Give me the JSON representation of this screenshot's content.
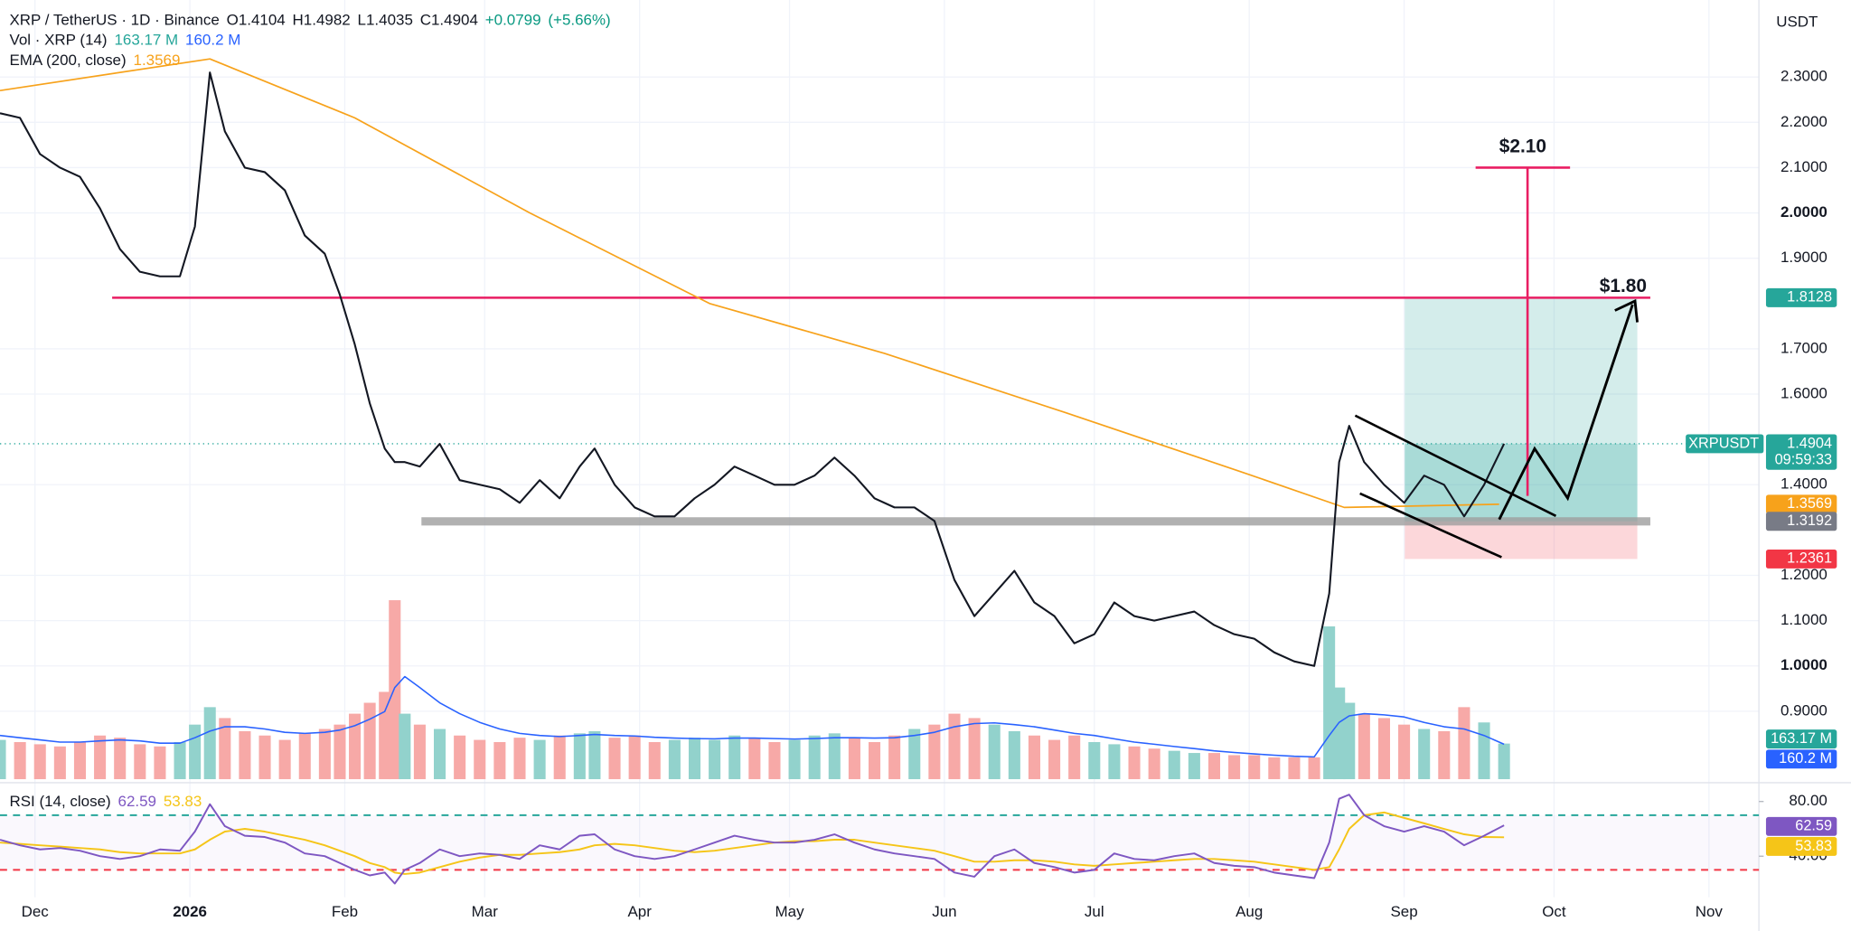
{
  "chart_data": {
    "type": "line",
    "title": "XRP / TetherUS · 1D · Binance",
    "ohlc": [
      {
        "value": 1.4104,
        "label": "O1.4104"
      },
      {
        "value": 1.4982,
        "label": "H1.4982"
      },
      {
        "value": 1.4035,
        "label": "L1.4035"
      },
      {
        "value": 1.4904,
        "label": "C1.4904"
      },
      {
        "value": 0.0799,
        "label": "+0.0799"
      },
      {
        "value": 5.66,
        "label": "(+5.66%)"
      }
    ],
    "currency": "USDT",
    "symbol_tag": "XRPUSDT",
    "countdown": "09:59:33",
    "xlim": [
      -7,
      345
    ],
    "xticks": [
      {
        "value": 0,
        "label": "Dec"
      },
      {
        "value": 31,
        "label": "2026"
      },
      {
        "value": 62,
        "label": "Feb"
      },
      {
        "value": 90,
        "label": "Mar"
      },
      {
        "value": 121,
        "label": "Apr"
      },
      {
        "value": 151,
        "label": "May"
      },
      {
        "value": 182,
        "label": "Jun"
      },
      {
        "value": 212,
        "label": "Jul"
      },
      {
        "value": 243,
        "label": "Aug"
      },
      {
        "value": 274,
        "label": "Sep"
      },
      {
        "value": 304,
        "label": "Oct"
      },
      {
        "value": 335,
        "label": "Nov"
      }
    ],
    "ylim": [
      0.75,
      2.47
    ],
    "yticks": [
      {
        "value": 2.3,
        "label": "2.3000"
      },
      {
        "value": 2.2,
        "label": "2.2000"
      },
      {
        "value": 2.1,
        "label": "2.1000"
      },
      {
        "value": 2.0,
        "label": "2.0000"
      },
      {
        "value": 1.9,
        "label": "1.9000"
      },
      {
        "value": 1.7,
        "label": "1.7000"
      },
      {
        "value": 1.6,
        "label": "1.6000"
      },
      {
        "value": 1.4,
        "label": "1.4000"
      },
      {
        "value": 1.2,
        "label": "1.2000"
      },
      {
        "value": 1.1,
        "label": "1.1000"
      },
      {
        "value": 1.0,
        "label": "1.0000"
      },
      {
        "value": 0.9,
        "label": "0.9000"
      }
    ],
    "grid": true,
    "x": [
      -7,
      -3,
      1,
      5,
      9,
      13,
      17,
      21,
      25,
      29,
      32,
      35,
      38,
      42,
      46,
      50,
      54,
      58,
      61,
      64,
      67,
      70,
      72,
      74,
      77,
      81,
      85,
      89,
      93,
      97,
      101,
      105,
      109,
      112,
      116,
      120,
      124,
      128,
      132,
      136,
      140,
      144,
      148,
      152,
      156,
      160,
      164,
      168,
      172,
      176,
      180,
      184,
      188,
      192,
      196,
      200,
      204,
      208,
      212,
      216,
      220,
      224,
      228,
      232,
      236,
      240,
      244,
      248,
      252,
      256,
      259,
      261,
      263,
      266,
      270,
      274,
      278,
      282,
      286,
      290,
      294
    ],
    "series": [
      {
        "name": "XRPUSDT",
        "color": "#131722",
        "values": [
          2.22,
          2.21,
          2.13,
          2.1,
          2.08,
          2.01,
          1.92,
          1.87,
          1.86,
          1.86,
          1.97,
          2.31,
          2.18,
          2.1,
          2.09,
          2.05,
          1.95,
          1.91,
          1.82,
          1.71,
          1.58,
          1.48,
          1.45,
          1.45,
          1.44,
          1.49,
          1.41,
          1.4,
          1.39,
          1.36,
          1.41,
          1.37,
          1.44,
          1.48,
          1.4,
          1.35,
          1.33,
          1.33,
          1.37,
          1.4,
          1.44,
          1.42,
          1.4,
          1.4,
          1.42,
          1.46,
          1.42,
          1.37,
          1.35,
          1.35,
          1.32,
          1.19,
          1.11,
          1.16,
          1.21,
          1.14,
          1.11,
          1.05,
          1.07,
          1.14,
          1.11,
          1.1,
          1.11,
          1.12,
          1.09,
          1.07,
          1.06,
          1.03,
          1.01,
          1.0,
          1.16,
          1.45,
          1.53,
          1.45,
          1.4,
          1.36,
          1.42,
          1.4,
          1.33,
          1.4,
          1.4904
        ]
      }
    ],
    "ema": {
      "name": "EMA (200, close)",
      "color": "#f7a21b",
      "x": [
        -7,
        35,
        64,
        99,
        135,
        170,
        206,
        241,
        262,
        293
      ],
      "values": [
        2.27,
        2.34,
        2.21,
        2.0,
        1.8,
        1.69,
        1.56,
        1.43,
        1.35,
        1.3569
      ]
    },
    "volume": {
      "name": "Vol · XRP (14)",
      "ylim": [
        0,
        3570
      ],
      "up_color": "#92d2cc",
      "down_color": "#f7a9a7",
      "ma_color": "#2962ff",
      "values": [
        180,
        170,
        160,
        150,
        170,
        200,
        190,
        160,
        150,
        170,
        250,
        330,
        280,
        220,
        200,
        180,
        210,
        230,
        250,
        300,
        350,
        400,
        820,
        300,
        250,
        230,
        200,
        180,
        170,
        190,
        180,
        200,
        210,
        220,
        190,
        200,
        170,
        180,
        190,
        180,
        200,
        190,
        170,
        180,
        200,
        210,
        190,
        170,
        200,
        230,
        250,
        300,
        280,
        250,
        220,
        200,
        180,
        200,
        170,
        160,
        150,
        140,
        130,
        120,
        120,
        110,
        110,
        100,
        100,
        100,
        700,
        420,
        350,
        300,
        280,
        250,
        230,
        220,
        330,
        260,
        163.17
      ],
      "value_labels": {
        "80": "163.17 M"
      },
      "ma_values": [
        200,
        190,
        180,
        170,
        170,
        175,
        180,
        175,
        165,
        165,
        190,
        220,
        240,
        240,
        230,
        215,
        210,
        215,
        225,
        245,
        275,
        310,
        420,
        470,
        420,
        350,
        300,
        260,
        230,
        210,
        200,
        195,
        200,
        205,
        200,
        198,
        192,
        188,
        186,
        185,
        188,
        188,
        186,
        184,
        186,
        190,
        190,
        188,
        190,
        200,
        215,
        240,
        255,
        258,
        250,
        240,
        225,
        210,
        200,
        185,
        170,
        160,
        150,
        140,
        130,
        122,
        116,
        110,
        105,
        102,
        200,
        260,
        290,
        300,
        295,
        285,
        260,
        240,
        230,
        200,
        160.2
      ],
      "ma_value_labels": {
        "80": "160.2 M"
      }
    },
    "rsi": {
      "name": "RSI (14, close)",
      "color": "#7e57c2",
      "ma_color": "#f5c518",
      "ylim": [
        10,
        92
      ],
      "yticks": [
        {
          "value": 80,
          "label": "80.00"
        },
        {
          "value": 40,
          "label": "40.00"
        }
      ],
      "levels": [
        70,
        30
      ],
      "values": [
        52,
        48,
        45,
        46,
        44,
        40,
        38,
        40,
        45,
        44,
        58,
        78,
        62,
        55,
        54,
        50,
        42,
        40,
        35,
        30,
        26,
        28,
        20,
        30,
        35,
        45,
        40,
        42,
        41,
        38,
        48,
        45,
        55,
        56,
        45,
        40,
        38,
        40,
        45,
        50,
        55,
        52,
        50,
        50,
        52,
        56,
        50,
        45,
        42,
        40,
        38,
        28,
        25,
        40,
        45,
        35,
        32,
        28,
        30,
        42,
        38,
        37,
        40,
        42,
        35,
        33,
        32,
        28,
        26,
        24,
        50,
        82,
        85,
        70,
        62,
        58,
        62,
        58,
        48,
        55,
        62.59
      ],
      "ma_values": [
        50,
        49,
        48,
        47,
        46,
        45,
        43,
        42,
        42,
        42,
        45,
        52,
        58,
        60,
        58,
        55,
        52,
        48,
        44,
        40,
        35,
        32,
        28,
        27,
        28,
        32,
        36,
        39,
        41,
        41,
        42,
        43,
        45,
        48,
        49,
        48,
        46,
        44,
        43,
        44,
        46,
        48,
        50,
        51,
        51,
        52,
        52,
        50,
        48,
        46,
        44,
        40,
        36,
        36,
        37,
        37,
        36,
        34,
        33,
        34,
        35,
        36,
        37,
        38,
        38,
        37,
        36,
        34,
        32,
        30,
        32,
        45,
        60,
        70,
        72,
        68,
        64,
        60,
        56,
        54,
        53.83
      ]
    },
    "resistance": {
      "value": 1.8128,
      "color": "#e91e63"
    },
    "support": {
      "value": 1.3192,
      "color": "#9e9e9e"
    },
    "position": {
      "target": 1.8128,
      "entry": 1.3192,
      "stop": 1.2361
    },
    "targets": [
      {
        "label": "$2.10",
        "value": 2.1
      },
      {
        "label": "$1.80",
        "value": 1.8
      }
    ]
  }
}
